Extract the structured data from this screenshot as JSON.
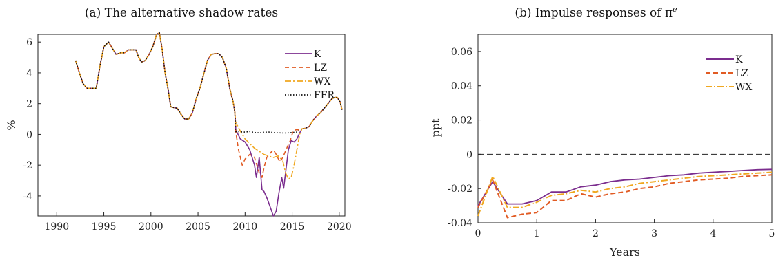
{
  "chart_data": [
    {
      "type": "line",
      "title": "(a) The alternative shadow rates",
      "xlabel": "",
      "ylabel": "%",
      "xlim": [
        1988,
        2020.6
      ],
      "ylim": [
        -5.3,
        6.5
      ],
      "xticks": [
        1990,
        1995,
        2000,
        2005,
        2010,
        2015,
        2020
      ],
      "yticks": [
        -4,
        -2,
        0,
        2,
        4,
        6
      ],
      "grid": false,
      "legend": "top-right",
      "series": [
        {
          "name": "K",
          "color": "#7B2D8E",
          "dash": "solid",
          "x": [
            2009.0,
            2009.5,
            2010.0,
            2010.5,
            2011.0,
            2011.2,
            2011.5,
            2011.8,
            2012.0,
            2012.3,
            2012.6,
            2013.0,
            2013.3,
            2013.6,
            2013.9,
            2014.1,
            2014.3,
            2014.6,
            2014.9,
            2015.2,
            2015.5,
            2015.8,
            2016.0
          ],
          "y": [
            0.3,
            -0.3,
            -0.5,
            -1.0,
            -2.0,
            -2.8,
            -1.5,
            -3.6,
            -3.7,
            -4.1,
            -4.6,
            -5.3,
            -5.0,
            -3.8,
            -2.8,
            -3.5,
            -2.5,
            -1.0,
            -0.4,
            -0.5,
            -0.3,
            0.1,
            0.3
          ]
        },
        {
          "name": "LZ",
          "color": "#E15B23",
          "dash": "6,4",
          "x": [
            2009.0,
            2009.3,
            2009.7,
            2010.0,
            2010.5,
            2011.0,
            2011.5,
            2011.8,
            2012.0,
            2012.3,
            2012.7,
            2013.0,
            2013.3,
            2013.7,
            2014.0,
            2014.5,
            2014.8,
            2015.1,
            2015.4,
            2015.7,
            2016.0
          ],
          "y": [
            0.2,
            -1.0,
            -2.0,
            -1.6,
            -1.3,
            -1.5,
            -2.5,
            -2.8,
            -2.2,
            -1.5,
            -1.2,
            -1.0,
            -1.3,
            -1.8,
            -1.5,
            -0.8,
            -0.4,
            0.2,
            0.3,
            0.3,
            0.3
          ]
        },
        {
          "name": "WX",
          "color": "#F0A820",
          "dash": "9,3,2,3",
          "x": [
            2009.0,
            2009.5,
            2010.0,
            2010.5,
            2011.0,
            2011.5,
            2012.0,
            2012.5,
            2013.0,
            2013.5,
            2014.0,
            2014.3,
            2014.6,
            2014.9,
            2015.2,
            2015.5,
            2015.8,
            2016.0
          ],
          "y": [
            0.8,
            0.2,
            -0.3,
            -0.6,
            -0.9,
            -1.1,
            -1.3,
            -1.4,
            -1.5,
            -1.4,
            -1.7,
            -2.5,
            -2.9,
            -2.8,
            -2.0,
            -1.0,
            0.0,
            0.3
          ]
        },
        {
          "name": "FFR",
          "color": "#111111",
          "dash": "1.5,2.5",
          "x": [
            2009.0,
            2009.5,
            2010.0,
            2010.5,
            2011.0,
            2011.5,
            2012.0,
            2012.5,
            2013.0,
            2013.5,
            2014.0,
            2014.5,
            2015.0,
            2015.5,
            2016.0
          ],
          "y": [
            0.18,
            0.16,
            0.15,
            0.18,
            0.12,
            0.1,
            0.14,
            0.15,
            0.12,
            0.1,
            0.09,
            0.09,
            0.12,
            0.15,
            0.36
          ]
        }
      ],
      "common": {
        "x": [
          1992.0,
          1992.4,
          1992.8,
          1993.2,
          1993.8,
          1994.2,
          1994.6,
          1995.0,
          1995.5,
          1995.9,
          1996.3,
          1996.8,
          1997.2,
          1997.6,
          1998.0,
          1998.4,
          1998.7,
          1999.0,
          1999.4,
          1999.8,
          2000.2,
          2000.6,
          2000.9,
          2001.2,
          2001.5,
          2001.8,
          2002.1,
          2002.4,
          2002.8,
          2003.2,
          2003.6,
          2004.0,
          2004.4,
          2004.8,
          2005.2,
          2005.6,
          2006.0,
          2006.4,
          2006.8,
          2007.2,
          2007.6,
          2008.0,
          2008.4,
          2008.7,
          2008.9,
          2009.0
        ],
        "y": [
          4.8,
          4.0,
          3.3,
          3.0,
          3.0,
          3.0,
          4.5,
          5.7,
          6.0,
          5.6,
          5.2,
          5.3,
          5.3,
          5.5,
          5.5,
          5.5,
          5.0,
          4.7,
          4.8,
          5.2,
          5.7,
          6.5,
          6.6,
          5.5,
          4.0,
          3.0,
          1.8,
          1.75,
          1.7,
          1.3,
          1.0,
          1.0,
          1.4,
          2.3,
          3.0,
          3.9,
          4.8,
          5.2,
          5.25,
          5.25,
          5.0,
          4.3,
          2.9,
          2.2,
          1.5,
          0.6
        ],
        "tail_x": [
          2016.0,
          2016.4,
          2016.8,
          2017.2,
          2017.6,
          2018.0,
          2018.4,
          2018.8,
          2019.2,
          2019.5,
          2019.8,
          2020.1,
          2020.3
        ],
        "tail_y": [
          0.36,
          0.4,
          0.5,
          0.9,
          1.2,
          1.4,
          1.7,
          2.0,
          2.3,
          2.4,
          2.4,
          2.1,
          1.6
        ]
      }
    },
    {
      "type": "line",
      "title": "(b) Impulse responses of π",
      "title_sup": "e",
      "xlabel": "Years",
      "ylabel": "ppt",
      "xlim": [
        0,
        5
      ],
      "ylim": [
        -0.04,
        0.07
      ],
      "xticks": [
        0,
        1,
        2,
        3,
        4,
        5
      ],
      "yticks": [
        -0.04,
        -0.02,
        0,
        0.02,
        0.04,
        0.06
      ],
      "ytick_labels": [
        "-0.04",
        "-0.02",
        "0",
        "0.02",
        "0.04",
        "0.06"
      ],
      "zero_line": 0,
      "grid": false,
      "legend": "top-right",
      "x": [
        0,
        0.25,
        0.5,
        0.75,
        1.0,
        1.25,
        1.5,
        1.75,
        2.0,
        2.25,
        2.5,
        2.75,
        3.0,
        3.25,
        3.5,
        3.75,
        4.0,
        4.25,
        4.5,
        4.75,
        5.0
      ],
      "series": [
        {
          "name": "K",
          "color": "#7B2D8E",
          "dash": "solid",
          "values": [
            -0.03,
            -0.016,
            -0.029,
            -0.029,
            -0.027,
            -0.022,
            -0.022,
            -0.019,
            -0.018,
            -0.016,
            -0.015,
            -0.0145,
            -0.0135,
            -0.0125,
            -0.012,
            -0.011,
            -0.0105,
            -0.01,
            -0.0095,
            -0.009,
            -0.0088
          ]
        },
        {
          "name": "LZ",
          "color": "#E15B23",
          "dash": "7,4",
          "values": [
            -0.031,
            -0.015,
            -0.037,
            -0.035,
            -0.034,
            -0.027,
            -0.027,
            -0.023,
            -0.025,
            -0.023,
            -0.022,
            -0.02,
            -0.019,
            -0.017,
            -0.016,
            -0.015,
            -0.0145,
            -0.014,
            -0.013,
            -0.0125,
            -0.012
          ]
        },
        {
          "name": "WX",
          "color": "#F0A820",
          "dash": "9,3,2,3",
          "values": [
            -0.036,
            -0.013,
            -0.031,
            -0.031,
            -0.028,
            -0.024,
            -0.023,
            -0.021,
            -0.022,
            -0.02,
            -0.019,
            -0.017,
            -0.016,
            -0.015,
            -0.014,
            -0.013,
            -0.0125,
            -0.012,
            -0.0115,
            -0.011,
            -0.0105
          ]
        }
      ]
    }
  ]
}
